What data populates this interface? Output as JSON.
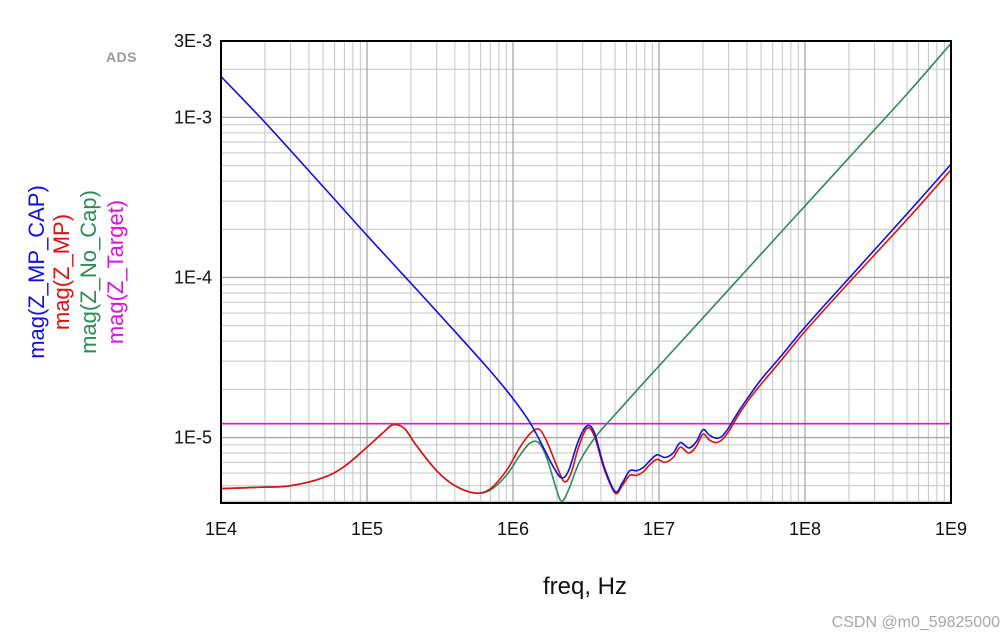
{
  "chart_data": {
    "type": "line",
    "xlabel": "freq, Hz",
    "x_scale": "log",
    "y_scale": "log",
    "xlim": [
      10000,
      1000000000
    ],
    "ylim": [
      3.9e-06,
      0.003
    ],
    "x_ticks": [
      {
        "value": 10000,
        "label": "1E4"
      },
      {
        "value": 100000,
        "label": "1E5"
      },
      {
        "value": 1000000,
        "label": "1E6"
      },
      {
        "value": 10000000,
        "label": "1E7"
      },
      {
        "value": 100000000,
        "label": "1E8"
      },
      {
        "value": 1000000000,
        "label": "1E9"
      }
    ],
    "y_ticks": [
      {
        "value": 1e-05,
        "label": "1E-5"
      },
      {
        "value": 0.0001,
        "label": "1E-4"
      },
      {
        "value": 0.001,
        "label": "1E-3"
      },
      {
        "value": 0.003,
        "label": "3E-3"
      }
    ],
    "grid": true,
    "legend_placement": "left, vertical",
    "series": [
      {
        "name": "mag(Z_MP_CAP)",
        "color": "#1010e0",
        "points": [
          [
            10000,
            0.0018
          ],
          [
            20000,
            0.00093
          ],
          [
            50000,
            0.00037
          ],
          [
            100000,
            0.000183
          ],
          [
            200000,
            9.2e-05
          ],
          [
            400000,
            4.6e-05
          ],
          [
            700000,
            2.6e-05
          ],
          [
            1000000,
            1.75e-05
          ],
          [
            1300000,
            1.25e-05
          ],
          [
            1600000,
            8.8e-06
          ],
          [
            1900000,
            6.5e-06
          ],
          [
            2150000,
            5.6e-06
          ],
          [
            2400000,
            6.2e-06
          ],
          [
            2800000,
            9.5e-06
          ],
          [
            3200000,
            1.18e-05
          ],
          [
            3600000,
            1.08e-05
          ],
          [
            4200000,
            6.6e-06
          ],
          [
            5000000,
            4.6e-06
          ],
          [
            5600000,
            5.2e-06
          ],
          [
            6300000,
            6.2e-06
          ],
          [
            7000000,
            6.2e-06
          ],
          [
            7800000,
            6.5e-06
          ],
          [
            8700000,
            7.2e-06
          ],
          [
            9700000,
            7.8e-06
          ],
          [
            11000000,
            7.5e-06
          ],
          [
            12500000,
            8e-06
          ],
          [
            14000000,
            9.3e-06
          ],
          [
            16000000,
            8.6e-06
          ],
          [
            18000000,
            9.4e-06
          ],
          [
            20000000,
            1.12e-05
          ],
          [
            22000000,
            1.04e-05
          ],
          [
            24500000,
            9.9e-06
          ],
          [
            27000000,
            1.02e-05
          ],
          [
            30000000,
            1.15e-05
          ],
          [
            35000000,
            1.45e-05
          ],
          [
            42000000,
            1.85e-05
          ],
          [
            50000000,
            2.3e-05
          ],
          [
            70000000,
            3.3e-05
          ],
          [
            100000000,
            4.9e-05
          ],
          [
            200000000,
            9.9e-05
          ],
          [
            500000000,
            0.00025
          ],
          [
            1000000000,
            0.00051
          ]
        ]
      },
      {
        "name": "mag(Z_MP)",
        "color": "#e01010",
        "points": [
          [
            10000,
            4.8e-06
          ],
          [
            20000,
            4.9e-06
          ],
          [
            30000,
            5e-06
          ],
          [
            50000,
            5.6e-06
          ],
          [
            70000,
            6.6e-06
          ],
          [
            100000,
            8.7e-06
          ],
          [
            130000,
            1.08e-05
          ],
          [
            150000,
            1.2e-05
          ],
          [
            180000,
            1.14e-05
          ],
          [
            220000,
            8.8e-06
          ],
          [
            300000,
            6.2e-06
          ],
          [
            400000,
            5e-06
          ],
          [
            550000,
            4.5e-06
          ],
          [
            700000,
            4.8e-06
          ],
          [
            900000,
            6.2e-06
          ],
          [
            1100000,
            8.5e-06
          ],
          [
            1300000,
            1.05e-05
          ],
          [
            1500000,
            1.13e-05
          ],
          [
            1700000,
            9.5e-06
          ],
          [
            2000000,
            6.6e-06
          ],
          [
            2250000,
            5.3e-06
          ],
          [
            2500000,
            6e-06
          ],
          [
            2800000,
            8.6e-06
          ],
          [
            3200000,
            1.14e-05
          ],
          [
            3600000,
            1.03e-05
          ],
          [
            4200000,
            6.4e-06
          ],
          [
            5000000,
            4.5e-06
          ],
          [
            5600000,
            5e-06
          ],
          [
            6300000,
            5.8e-06
          ],
          [
            7000000,
            5.8e-06
          ],
          [
            7800000,
            6.1e-06
          ],
          [
            8700000,
            6.8e-06
          ],
          [
            9700000,
            7.3e-06
          ],
          [
            11000000,
            7e-06
          ],
          [
            12500000,
            7.5e-06
          ],
          [
            14000000,
            8.7e-06
          ],
          [
            16000000,
            8e-06
          ],
          [
            18000000,
            8.8e-06
          ],
          [
            20000000,
            1.05e-05
          ],
          [
            22000000,
            9.7e-06
          ],
          [
            24500000,
            9.3e-06
          ],
          [
            27000000,
            9.7e-06
          ],
          [
            30000000,
            1.09e-05
          ],
          [
            35000000,
            1.38e-05
          ],
          [
            42000000,
            1.76e-05
          ],
          [
            50000000,
            2.15e-05
          ],
          [
            70000000,
            3.1e-05
          ],
          [
            100000000,
            4.6e-05
          ],
          [
            200000000,
            9.3e-05
          ],
          [
            500000000,
            0.00023
          ],
          [
            1000000000,
            0.00047
          ]
        ]
      },
      {
        "name": "mag(Z_No_Cap)",
        "color": "#2e8b57",
        "points": [
          [
            10000,
            4.8e-06
          ],
          [
            20000,
            4.9e-06
          ],
          [
            30000,
            5e-06
          ],
          [
            50000,
            5.6e-06
          ],
          [
            70000,
            6.6e-06
          ],
          [
            100000,
            8.7e-06
          ],
          [
            130000,
            1.08e-05
          ],
          [
            150000,
            1.2e-05
          ],
          [
            180000,
            1.14e-05
          ],
          [
            220000,
            8.8e-06
          ],
          [
            300000,
            6.2e-06
          ],
          [
            400000,
            5e-06
          ],
          [
            550000,
            4.5e-06
          ],
          [
            700000,
            4.7e-06
          ],
          [
            900000,
            5.8e-06
          ],
          [
            1100000,
            7.6e-06
          ],
          [
            1300000,
            9.2e-06
          ],
          [
            1500000,
            9.3e-06
          ],
          [
            1700000,
            7.5e-06
          ],
          [
            1950000,
            5e-06
          ],
          [
            2150000,
            4e-06
          ],
          [
            2400000,
            4.7e-06
          ],
          [
            2800000,
            6.8e-06
          ],
          [
            3300000,
            8.8e-06
          ],
          [
            4000000,
            1.11e-05
          ],
          [
            5000000,
            1.39e-05
          ],
          [
            7000000,
            1.96e-05
          ],
          [
            10000000,
            2.8e-05
          ],
          [
            20000000,
            5.6e-05
          ],
          [
            50000000,
            0.00014
          ],
          [
            100000000,
            0.00028
          ],
          [
            200000000,
            0.00056
          ],
          [
            500000000,
            0.0014
          ],
          [
            1000000000,
            0.0029
          ]
        ]
      },
      {
        "name": "mag(Z_Target)",
        "color": "#e010e0",
        "points": [
          [
            10000,
            1.22e-05
          ],
          [
            1000000000,
            1.22e-05
          ]
        ]
      }
    ],
    "annotations": [
      "ADS"
    ]
  },
  "watermark": "CSDN @m0_59825000"
}
